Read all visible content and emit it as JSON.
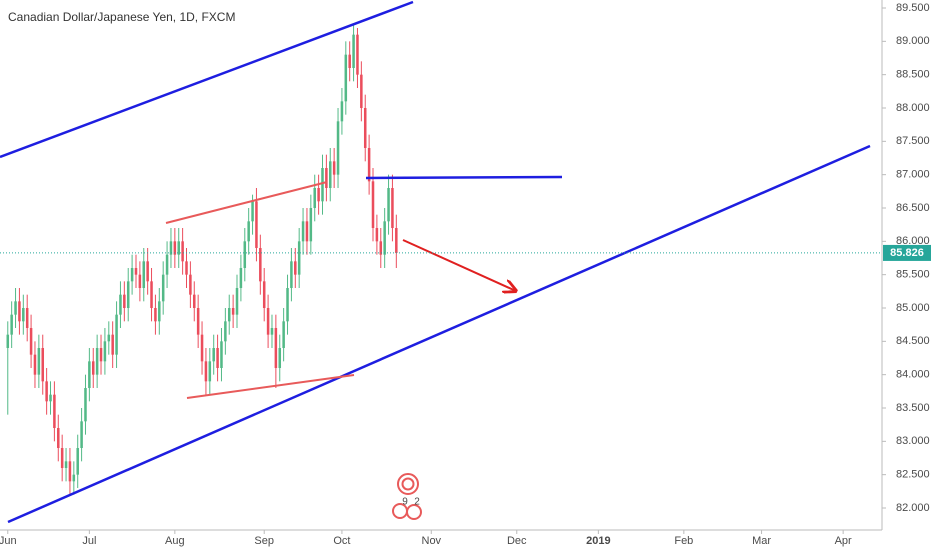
{
  "chart_data": {
    "type": "candlestick",
    "title": "Canadian Dollar/Japanese Yen, 1D, FXCM",
    "x": [
      0,
      1,
      2,
      3,
      4,
      5,
      6,
      7,
      8,
      9,
      10,
      11,
      12,
      13,
      14,
      15,
      16,
      17,
      18,
      19,
      20,
      21,
      22,
      23,
      24,
      25,
      26,
      27,
      28,
      29,
      30,
      31,
      32,
      33,
      34,
      35,
      36,
      37,
      38,
      39,
      40,
      41,
      42,
      43,
      44,
      45,
      46,
      47,
      48,
      49,
      50,
      51,
      52,
      53,
      54,
      55,
      56,
      57,
      58,
      59,
      60,
      61,
      62,
      63,
      64,
      65,
      66,
      67,
      68,
      69,
      70,
      71,
      72,
      73,
      74,
      75,
      76,
      77,
      78,
      79,
      80,
      81,
      82,
      83,
      84,
      85,
      86,
      87,
      88,
      89,
      90,
      91,
      92,
      93,
      94,
      95,
      96,
      97,
      98,
      99,
      100
    ],
    "open": [
      84.4,
      84.6,
      84.9,
      85.1,
      84.8,
      85.0,
      84.7,
      84.3,
      84.0,
      84.4,
      83.9,
      83.6,
      83.7,
      83.2,
      82.9,
      82.6,
      82.7,
      82.4,
      82.5,
      82.9,
      83.3,
      83.8,
      84.2,
      84.0,
      84.4,
      84.2,
      84.5,
      84.6,
      84.3,
      84.9,
      85.2,
      85.0,
      85.4,
      85.6,
      85.5,
      85.3,
      85.7,
      85.4,
      85.0,
      84.8,
      85.1,
      85.5,
      85.8,
      86.0,
      85.8,
      86.0,
      85.7,
      85.5,
      85.2,
      85.0,
      84.6,
      84.2,
      83.9,
      84.2,
      84.4,
      84.1,
      84.5,
      84.8,
      85.0,
      84.9,
      85.3,
      85.6,
      86.0,
      86.3,
      86.6,
      85.9,
      85.4,
      85.0,
      84.6,
      84.7,
      84.1,
      84.4,
      84.8,
      85.3,
      85.7,
      85.5,
      86.0,
      86.3,
      86.0,
      86.5,
      86.8,
      86.6,
      87.1,
      86.8,
      87.2,
      87.0,
      87.8,
      88.1,
      88.8,
      88.6,
      89.1,
      88.5,
      88.0,
      87.4,
      86.9,
      86.2,
      86.0,
      85.8,
      86.3,
      86.8,
      86.2
    ],
    "high": [
      84.8,
      85.1,
      85.3,
      85.3,
      85.2,
      85.2,
      84.9,
      84.5,
      84.6,
      84.6,
      84.1,
      83.9,
      83.9,
      83.4,
      83.1,
      82.9,
      82.9,
      82.7,
      83.1,
      83.5,
      84.0,
      84.4,
      84.4,
      84.6,
      84.6,
      84.7,
      84.8,
      84.8,
      85.1,
      85.4,
      85.4,
      85.6,
      85.8,
      85.8,
      85.7,
      85.9,
      85.9,
      85.6,
      85.2,
      85.3,
      85.7,
      86.0,
      86.2,
      86.2,
      86.2,
      86.2,
      85.9,
      85.7,
      85.4,
      85.2,
      84.8,
      84.4,
      84.4,
      84.6,
      84.6,
      84.7,
      85.0,
      85.2,
      85.2,
      85.5,
      85.8,
      86.2,
      86.5,
      86.7,
      86.8,
      86.1,
      85.6,
      85.2,
      84.9,
      84.9,
      84.6,
      85.0,
      85.5,
      85.9,
      85.9,
      86.2,
      86.5,
      86.5,
      86.7,
      87.0,
      87.0,
      87.3,
      87.3,
      87.4,
      87.4,
      88.0,
      88.3,
      89.0,
      89.0,
      89.25,
      89.2,
      88.7,
      88.2,
      87.6,
      87.1,
      86.4,
      86.2,
      86.5,
      87.0,
      87.0,
      86.4
    ],
    "low": [
      83.4,
      84.4,
      84.7,
      84.6,
      84.6,
      84.5,
      84.1,
      83.8,
      83.8,
      83.7,
      83.4,
      83.4,
      83.0,
      82.7,
      82.4,
      82.4,
      82.2,
      82.2,
      82.3,
      82.7,
      83.1,
      83.6,
      83.8,
      83.8,
      84.0,
      84.0,
      84.3,
      84.1,
      84.1,
      84.7,
      84.8,
      84.8,
      85.2,
      85.3,
      85.1,
      85.1,
      85.2,
      84.8,
      84.6,
      84.6,
      84.9,
      85.3,
      85.6,
      85.6,
      85.6,
      85.5,
      85.3,
      85.0,
      84.8,
      84.4,
      84.0,
      83.7,
      83.7,
      84.0,
      83.9,
      83.9,
      84.3,
      84.6,
      84.7,
      84.7,
      85.1,
      85.4,
      85.8,
      86.1,
      85.7,
      85.2,
      84.8,
      84.4,
      84.4,
      83.8,
      83.9,
      84.2,
      84.6,
      85.1,
      85.3,
      85.3,
      85.8,
      85.8,
      85.8,
      86.3,
      86.4,
      86.4,
      86.6,
      86.6,
      86.8,
      86.8,
      87.6,
      87.9,
      88.4,
      88.4,
      88.3,
      87.8,
      87.2,
      86.7,
      86.0,
      85.8,
      85.6,
      85.6,
      86.1,
      86.0,
      85.6
    ],
    "close": [
      84.6,
      84.9,
      85.1,
      84.8,
      85.0,
      84.7,
      84.3,
      84.0,
      84.4,
      83.9,
      83.6,
      83.7,
      83.2,
      82.9,
      82.6,
      82.7,
      82.4,
      82.5,
      82.9,
      83.3,
      83.8,
      84.2,
      84.0,
      84.4,
      84.2,
      84.5,
      84.6,
      84.3,
      84.9,
      85.2,
      85.0,
      85.4,
      85.6,
      85.5,
      85.3,
      85.7,
      85.4,
      85.0,
      84.8,
      85.1,
      85.5,
      85.8,
      86.0,
      85.8,
      86.0,
      85.7,
      85.5,
      85.2,
      85.0,
      84.6,
      84.2,
      83.9,
      84.2,
      84.4,
      84.1,
      84.5,
      84.8,
      85.0,
      84.9,
      85.3,
      85.6,
      86.0,
      86.3,
      86.6,
      85.9,
      85.4,
      85.0,
      84.6,
      84.7,
      84.1,
      84.4,
      84.8,
      85.3,
      85.7,
      85.5,
      86.0,
      86.3,
      86.0,
      86.5,
      86.8,
      86.6,
      87.1,
      86.8,
      87.2,
      87.0,
      87.8,
      88.1,
      88.8,
      88.6,
      89.1,
      88.5,
      88.0,
      87.4,
      86.9,
      86.2,
      86.0,
      85.8,
      86.3,
      86.8,
      86.2,
      85.826
    ],
    "up_color": "#53b987",
    "down_color": "#eb4d5c",
    "last_price": 85.826,
    "last_price_color": "#26a69a",
    "xlim": [
      -2,
      225
    ],
    "xticks": [
      {
        "value": 0,
        "label": "Jun"
      },
      {
        "value": 21,
        "label": "Jul"
      },
      {
        "value": 43,
        "label": "Aug"
      },
      {
        "value": 66,
        "label": "Sep"
      },
      {
        "value": 86,
        "label": "Oct"
      },
      {
        "value": 109,
        "label": "Nov"
      },
      {
        "value": 131,
        "label": "Dec"
      },
      {
        "value": 152,
        "label": "2019"
      },
      {
        "value": 174,
        "label": "Feb"
      },
      {
        "value": 194,
        "label": "Mar"
      },
      {
        "value": 215,
        "label": "Apr"
      }
    ],
    "ylim": [
      81.67,
      89.62
    ],
    "yticks": [
      {
        "value": 82,
        "label": "82.000"
      },
      {
        "value": 82.5,
        "label": "82.500"
      },
      {
        "value": 83,
        "label": "83.000"
      },
      {
        "value": 83.5,
        "label": "83.500"
      },
      {
        "value": 84,
        "label": "84.000"
      },
      {
        "value": 84.5,
        "label": "84.500"
      },
      {
        "value": 85,
        "label": "85.000"
      },
      {
        "value": 85.5,
        "label": "85.500"
      },
      {
        "value": 86,
        "label": "86.000"
      },
      {
        "value": 86.5,
        "label": "86.500"
      },
      {
        "value": 87,
        "label": "87.000"
      },
      {
        "value": 87.5,
        "label": "87.500"
      },
      {
        "value": 88,
        "label": "88.000"
      },
      {
        "value": 88.5,
        "label": "88.500"
      },
      {
        "value": 89,
        "label": "89.000"
      },
      {
        "value": 89.5,
        "label": "89.500"
      }
    ],
    "grid": false,
    "event_labels": [
      "9",
      "2"
    ]
  }
}
